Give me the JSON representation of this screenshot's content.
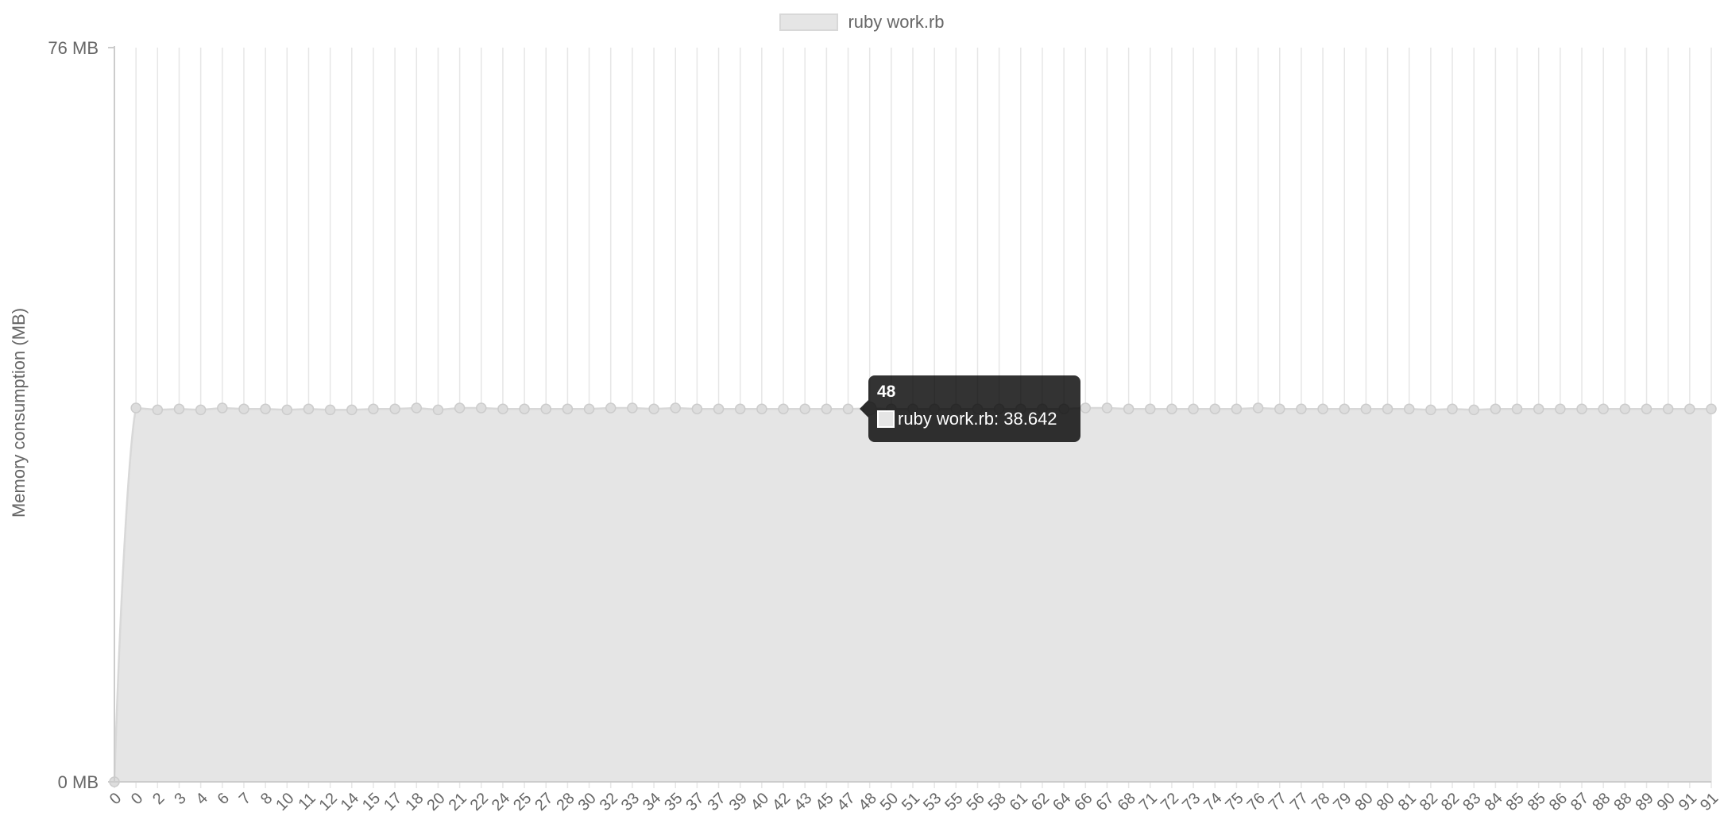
{
  "legend": {
    "label": "ruby work.rb",
    "swatch_color": "#e5e5e5"
  },
  "axis": {
    "ylabel": "Memory consumption (MB)",
    "ytick_top": "76 MB",
    "ytick_bottom": "0 MB"
  },
  "tooltip": {
    "title": "48",
    "label": "ruby work.rb: 38.642"
  },
  "colors": {
    "fill": "#e5e5e5",
    "line": "#d8d8d8",
    "point": "#dddddd",
    "grid": "#e6e6e6",
    "text": "#666666"
  },
  "chart_data": {
    "type": "area",
    "title": "",
    "xlabel": "",
    "ylabel": "Memory consumption (MB)",
    "ylim": [
      0,
      76
    ],
    "grid": true,
    "legend_position": "top-center",
    "categories": [
      "0",
      "0",
      "2",
      "3",
      "4",
      "6",
      "7",
      "8",
      "10",
      "11",
      "12",
      "14",
      "15",
      "17",
      "18",
      "20",
      "21",
      "22",
      "24",
      "25",
      "27",
      "28",
      "30",
      "32",
      "33",
      "34",
      "35",
      "37",
      "37",
      "39",
      "40",
      "42",
      "43",
      "45",
      "47",
      "48",
      "50",
      "51",
      "53",
      "55",
      "56",
      "58",
      "61",
      "62",
      "64",
      "66",
      "67",
      "68",
      "71",
      "72",
      "73",
      "74",
      "75",
      "76",
      "77",
      "77",
      "78",
      "79",
      "80",
      "80",
      "81",
      "82",
      "82",
      "83",
      "84",
      "85",
      "85",
      "86",
      "87",
      "88",
      "88",
      "89",
      "90",
      "91",
      "91"
    ],
    "series": [
      {
        "name": "ruby work.rb",
        "values": [
          0,
          38.7,
          38.5,
          38.6,
          38.5,
          38.7,
          38.6,
          38.6,
          38.5,
          38.6,
          38.5,
          38.5,
          38.6,
          38.6,
          38.7,
          38.5,
          38.7,
          38.7,
          38.6,
          38.6,
          38.6,
          38.6,
          38.6,
          38.7,
          38.7,
          38.6,
          38.7,
          38.6,
          38.6,
          38.6,
          38.6,
          38.6,
          38.6,
          38.6,
          38.6,
          38.642,
          38.6,
          38.6,
          38.6,
          38.6,
          38.6,
          38.6,
          38.6,
          38.6,
          38.6,
          38.7,
          38.7,
          38.6,
          38.6,
          38.6,
          38.6,
          38.6,
          38.6,
          38.7,
          38.6,
          38.6,
          38.6,
          38.6,
          38.6,
          38.6,
          38.6,
          38.5,
          38.6,
          38.5,
          38.6,
          38.6,
          38.6,
          38.6,
          38.6,
          38.6,
          38.6,
          38.6,
          38.6,
          38.6,
          38.6
        ]
      }
    ],
    "highlighted_index": 35
  }
}
